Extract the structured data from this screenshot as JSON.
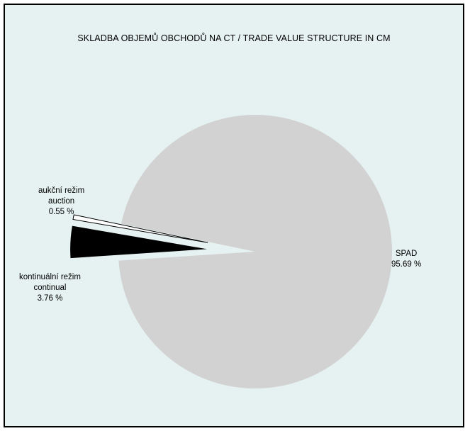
{
  "chart_data": {
    "type": "pie",
    "title": "SKLADBA OBJEMŮ OBCHODŮ NA CT / TRADE VALUE STRUCTURE IN CM",
    "slices": [
      {
        "label_lines": [
          "SPAD"
        ],
        "value": 95.69,
        "value_text": "95.69 %",
        "color": "#d2d2d2",
        "exploded": false
      },
      {
        "label_lines": [
          "aukční režim",
          "auction"
        ],
        "value": 0.55,
        "value_text": "0.55 %",
        "color": "#ffffff",
        "exploded": true
      },
      {
        "label_lines": [
          "kontinuální režim",
          "continual"
        ],
        "value": 3.76,
        "value_text": "3.76 %",
        "color": "#000000",
        "exploded": true
      }
    ]
  }
}
